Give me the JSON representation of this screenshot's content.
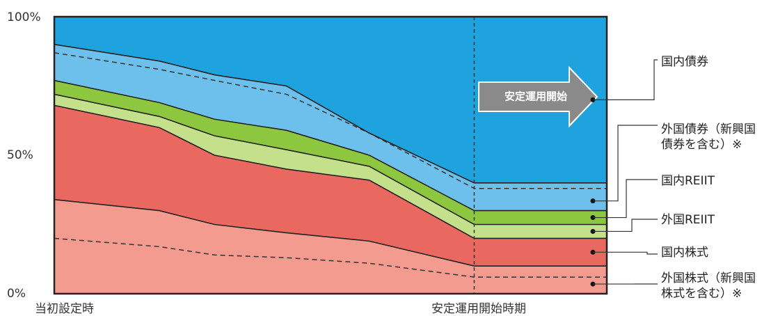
{
  "chart_data": {
    "type": "area",
    "stacked": true,
    "ylim": [
      0,
      100
    ],
    "y_ticks": [
      "0%",
      "50%",
      "100%"
    ],
    "x_points": [
      0,
      0.19,
      0.29,
      0.42,
      0.57,
      0.76,
      1.0
    ],
    "x_labels": [
      "当初設定時",
      "安定運用開始時期"
    ],
    "arrow_label": "安定運用開始",
    "series": [
      {
        "name": "外国株式（新興国株式を含む）※",
        "color": "#f29b8e",
        "values": [
          34,
          30,
          25,
          22,
          19,
          10,
          10
        ],
        "emerging_inner_values": [
          20,
          17,
          14,
          13,
          11,
          6,
          6
        ]
      },
      {
        "name": "国内株式",
        "color": "#e9685f",
        "values": [
          34,
          30,
          25,
          23,
          22,
          10,
          10
        ]
      },
      {
        "name": "外国REIIT",
        "color": "#c4e08a",
        "values": [
          4,
          4,
          7,
          7,
          5,
          5,
          5
        ]
      },
      {
        "name": "国内REIIT",
        "color": "#8dc63f",
        "values": [
          5,
          5,
          6,
          7,
          4,
          5,
          5
        ]
      },
      {
        "name": "外国債券（新興国債券を含む）※",
        "color": "#6cc0eb",
        "values": [
          13,
          15,
          16,
          16,
          8,
          10,
          10
        ],
        "emerging_inner_values": [
          10,
          12,
          14,
          13,
          8,
          8,
          8
        ]
      },
      {
        "name": "国内債券",
        "color": "#1ea3de",
        "values": [
          10,
          16,
          21,
          25,
          42,
          60,
          60
        ]
      }
    ]
  }
}
